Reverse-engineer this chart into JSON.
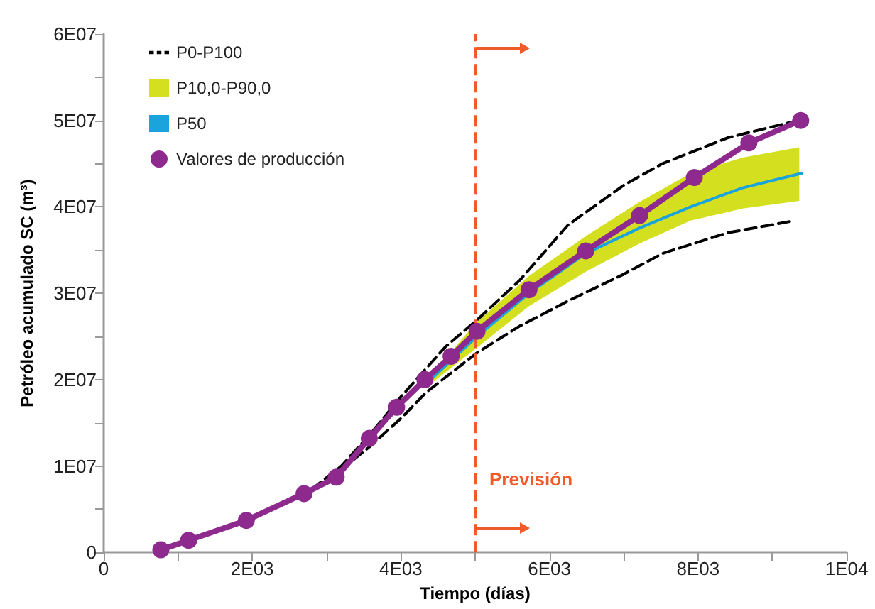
{
  "chart_data": {
    "type": "line",
    "xlabel": "Tiempo (días)",
    "ylabel": "Petróleo acumulado SC (m³)",
    "xlim": [
      0,
      10000
    ],
    "ylim": [
      0,
      60000000
    ],
    "xticks": [
      0,
      {
        "value": 1000,
        "label": null
      },
      {
        "value": 2000,
        "label": "2E03"
      },
      {
        "value": 3000,
        "label": null
      },
      {
        "value": 4000,
        "label": "4E03"
      },
      {
        "value": 5000,
        "label": null
      },
      {
        "value": 6000,
        "label": "6E03"
      },
      {
        "value": 7000,
        "label": null
      },
      {
        "value": 8000,
        "label": "8E03"
      },
      {
        "value": 9000,
        "label": null
      },
      {
        "value": 10000,
        "label": "1E04"
      }
    ],
    "yticks": [
      0,
      {
        "value": 5000000,
        "label": null
      },
      {
        "value": 10000000,
        "label": "1E07"
      },
      {
        "value": 15000000,
        "label": null
      },
      {
        "value": 20000000,
        "label": "2E07"
      },
      {
        "value": 25000000,
        "label": null
      },
      {
        "value": 30000000,
        "label": "3E07"
      },
      {
        "value": 35000000,
        "label": null
      },
      {
        "value": 40000000,
        "label": "4E07"
      },
      {
        "value": 45000000,
        "label": null
      },
      {
        "value": 50000000,
        "label": "5E07"
      },
      {
        "value": 55000000,
        "label": null
      },
      {
        "value": 60000000,
        "label": "6E07"
      }
    ],
    "grid": false,
    "legend": "top left",
    "ref_lines": [
      {
        "axis": "x",
        "value": 5000,
        "label": "Previsión",
        "color": "#f15a29",
        "line_style": "dashed"
      }
    ],
    "series": [
      {
        "name": "P0-P100",
        "color": "#000000",
        "line_style": "dashed",
        "marker": "none",
        "x": [
          2800,
          3200,
          3600,
          4000,
          4600,
          5025,
          5600,
          6250,
          7000,
          7520,
          8400,
          9300
        ],
        "values": [
          7300000,
          10000000,
          13800000,
          18000000,
          23800000,
          26900000,
          31500000,
          37900000,
          42500000,
          45000000,
          48000000,
          49900000
        ]
      },
      {
        "color": "#000000",
        "line_style": "dashed",
        "marker": "none",
        "x": [
          2800,
          3200,
          3575,
          4000,
          4338,
          5025,
          5600,
          6250,
          7000,
          7520,
          8400,
          9300
        ],
        "values": [
          7300000,
          9600000,
          12200000,
          15500000,
          18500000,
          23100000,
          26200000,
          29100000,
          32200000,
          34600000,
          37000000,
          38400000
        ]
      },
      {
        "name": "P10,0-P90,0",
        "type": "area",
        "color": "#d4df1f",
        "x": [
          4400,
          5025,
          5725,
          6489,
          7200,
          7901,
          8600,
          9363
        ],
        "values": [
          null,
          null,
          null,
          null,
          null,
          null,
          null,
          null
        ],
        "upper": [
          20500000,
          26700000,
          32000000,
          36600000,
          40500000,
          43900000,
          45700000,
          46900000
        ],
        "lower": [
          19500000,
          23700000,
          28500000,
          32500000,
          35700000,
          38400000,
          39800000,
          40700000
        ]
      },
      {
        "name": "P50",
        "color": "#1aa3dc",
        "line_style": "solid",
        "marker": "none",
        "x": [
          4400,
          5025,
          5725,
          6489,
          7200,
          7901,
          8600,
          9400
        ],
        "values": [
          20000000,
          25000000,
          30000000,
          34600000,
          37500000,
          40000000,
          42200000,
          43900000
        ]
      },
      {
        "name": "Valores de producción",
        "color": "#8e2a8e",
        "line_style": "solid",
        "marker": "circle",
        "x": [
          769,
          1143,
          1920,
          2697,
          3130,
          3575,
          3943,
          4324,
          4676,
          5025,
          5725,
          6489,
          7214,
          7950,
          8684,
          9382
        ],
        "values": [
          300000,
          1400000,
          3700000,
          6800000,
          8700000,
          13200000,
          16800000,
          20000000,
          22700000,
          25600000,
          30400000,
          34900000,
          39000000,
          43400000,
          47400000,
          50000000
        ]
      }
    ]
  }
}
